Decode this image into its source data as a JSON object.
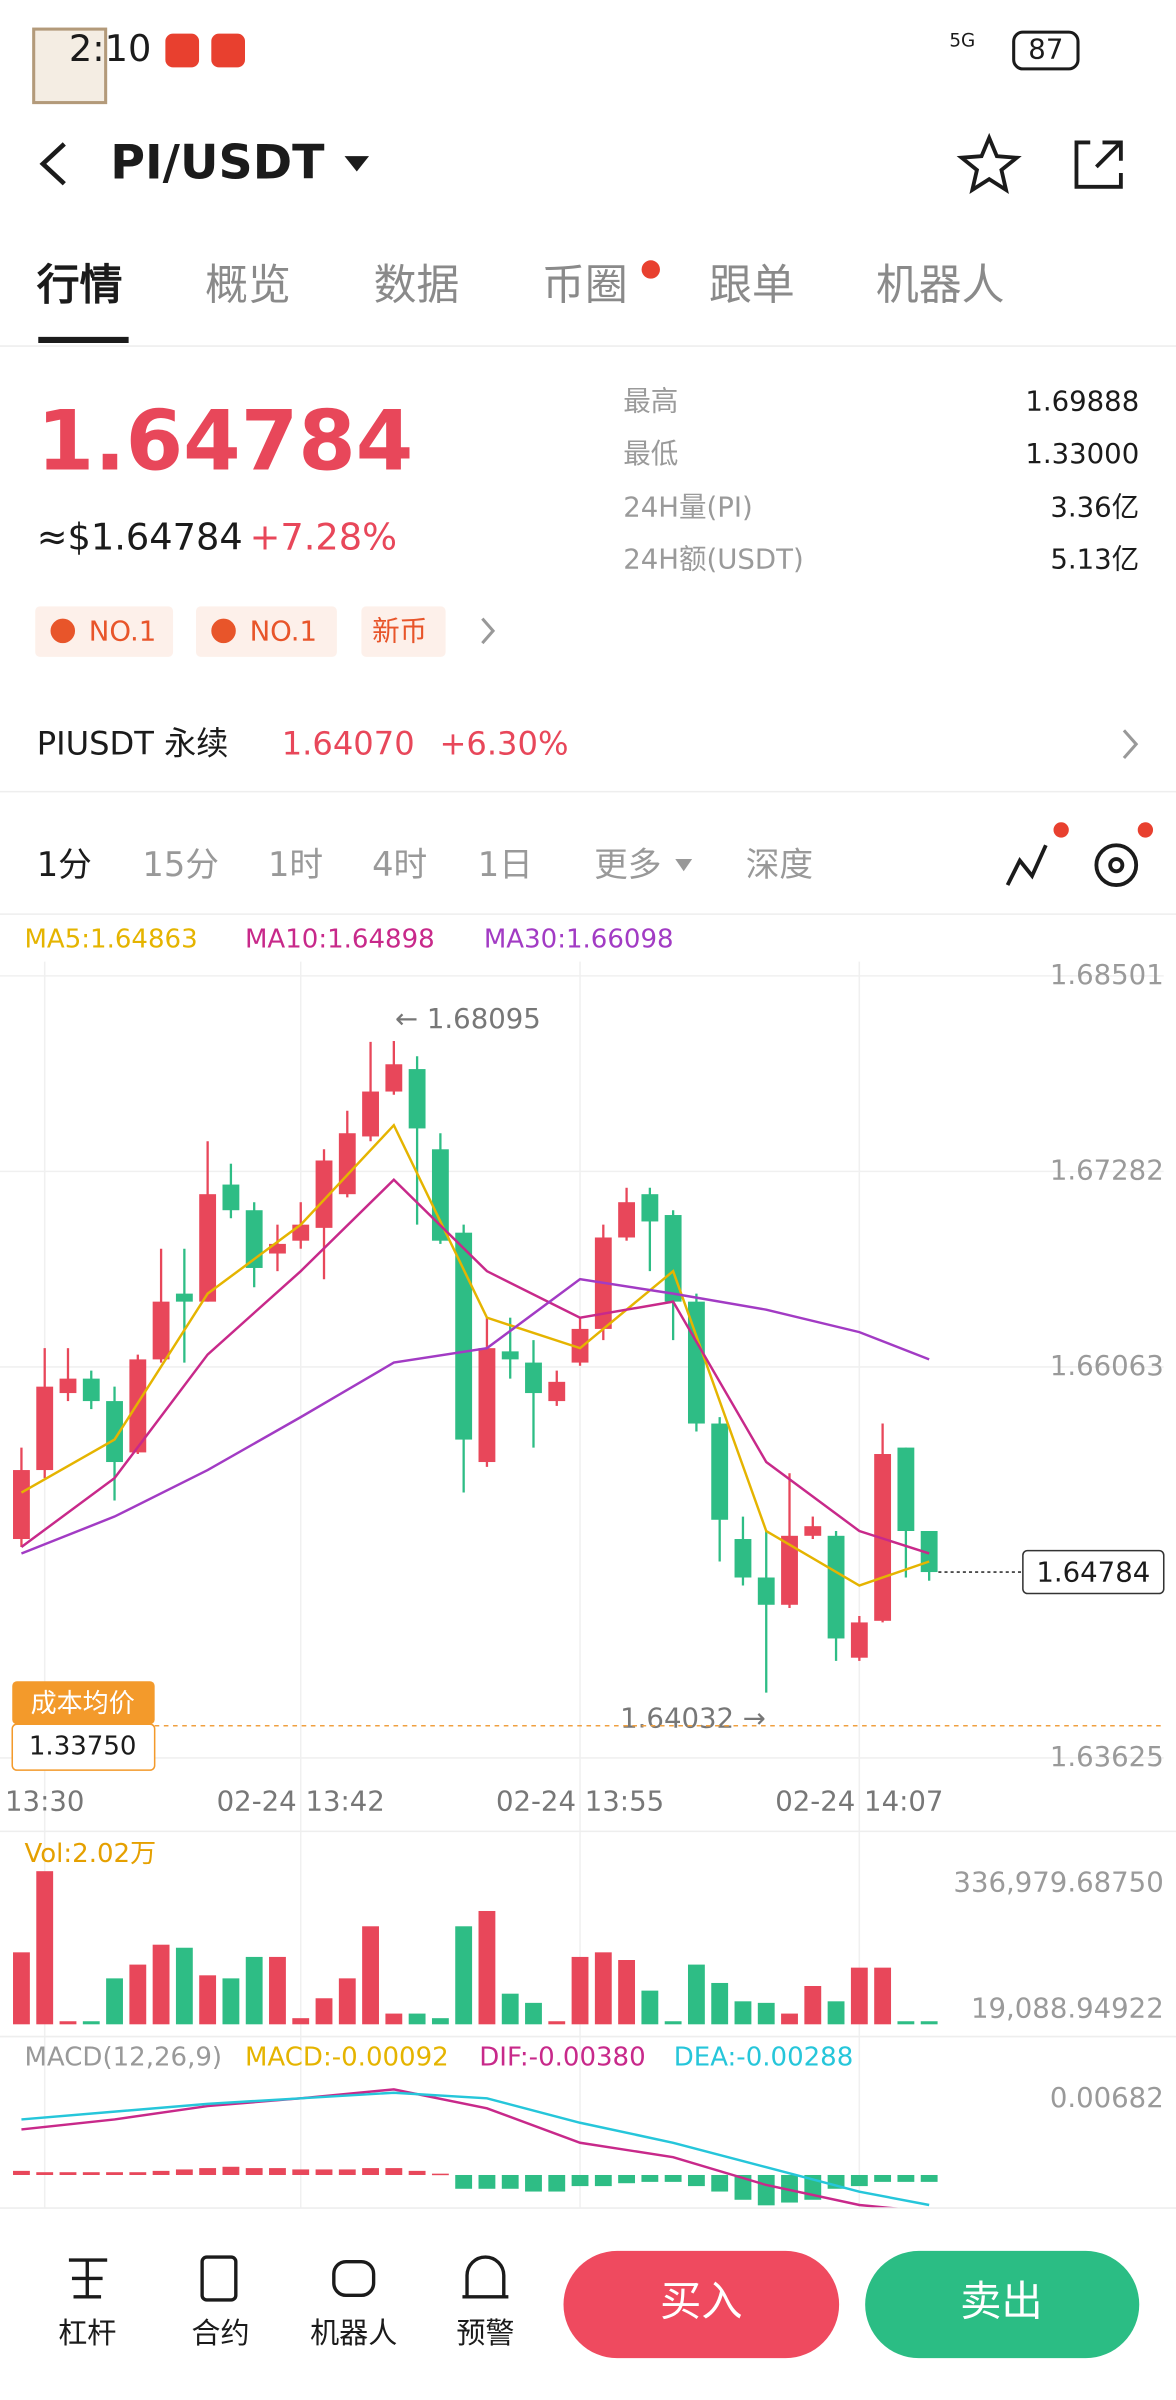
{
  "status_bar": {
    "time": "2:10",
    "network": "5G",
    "battery": "87"
  },
  "header": {
    "title": "PI/USDT"
  },
  "tabs": [
    "行情",
    "概览",
    "数据",
    "币圈",
    "跟单",
    "机器人"
  ],
  "price": {
    "last": "1.64784",
    "usd": "≈$1.64784",
    "change": "+7.28%",
    "badges": [
      "NO.1",
      "NO.1",
      "新币"
    ]
  },
  "stats": [
    [
      "最高",
      "1.69888"
    ],
    [
      "最低",
      "1.33000"
    ],
    [
      "24H量(PI)",
      "3.36亿"
    ],
    [
      "24H额(USDT)",
      "5.13亿"
    ]
  ],
  "perpetual": {
    "name": "PIUSDT 永续",
    "price": "1.64070",
    "change": "+6.30%"
  },
  "intervals": [
    "1分",
    "15分",
    "1时",
    "4时",
    "1日",
    "更多",
    "深度"
  ],
  "chart_data": {
    "type": "candlestick",
    "up_color": "#e8475a",
    "down_color": "#2ebd85",
    "ylim": [
      1.6353,
      1.6859
    ],
    "yticks": [
      1.68501,
      1.67282,
      1.66063,
      1.63625
    ],
    "grid": true,
    "candles": [
      [
        1.6499,
        1.6556,
        1.6494,
        1.6542
      ],
      [
        1.6542,
        1.6618,
        1.6537,
        1.6594
      ],
      [
        1.659,
        1.6618,
        1.6585,
        1.6599
      ],
      [
        1.6599,
        1.6604,
        1.658,
        1.6585
      ],
      [
        1.6585,
        1.6594,
        1.6523,
        1.6547
      ],
      [
        1.6553,
        1.6614,
        1.6552,
        1.6611
      ],
      [
        1.6611,
        1.668,
        1.6609,
        1.6647
      ],
      [
        1.6652,
        1.668,
        1.6609,
        1.6647
      ],
      [
        1.6647,
        1.6747,
        1.6647,
        1.6714
      ],
      [
        1.672,
        1.6733,
        1.6699,
        1.6704
      ],
      [
        1.6704,
        1.6709,
        1.6656,
        1.6668
      ],
      [
        1.6677,
        1.6695,
        1.6666,
        1.6683
      ],
      [
        1.6685,
        1.6709,
        1.668,
        1.6695
      ],
      [
        1.6693,
        1.6742,
        1.6661,
        1.6735
      ],
      [
        1.6714,
        1.6766,
        1.6712,
        1.6752
      ],
      [
        1.675,
        1.6809,
        1.6747,
        1.6778
      ],
      [
        1.6778,
        1.68095,
        1.6776,
        1.6795
      ],
      [
        1.6792,
        1.68,
        1.6695,
        1.6755
      ],
      [
        1.6742,
        1.6752,
        1.6683,
        1.6685
      ],
      [
        1.669,
        1.6695,
        1.6528,
        1.6561
      ],
      [
        1.6547,
        1.6637,
        1.6544,
        1.6618
      ],
      [
        1.6616,
        1.6637,
        1.6599,
        1.6611
      ],
      [
        1.6609,
        1.6623,
        1.6556,
        1.659
      ],
      [
        1.6585,
        1.6604,
        1.6582,
        1.6597
      ],
      [
        1.6609,
        1.6637,
        1.6607,
        1.663
      ],
      [
        1.663,
        1.6695,
        1.6623,
        1.6687
      ],
      [
        1.6687,
        1.6718,
        1.6685,
        1.6709
      ],
      [
        1.6714,
        1.6718,
        1.6666,
        1.6697
      ],
      [
        1.6701,
        1.6704,
        1.6623,
        1.6647
      ],
      [
        1.6647,
        1.6652,
        1.6566,
        1.6571
      ],
      [
        1.6571,
        1.6575,
        1.6485,
        1.6511
      ],
      [
        1.6499,
        1.6513,
        1.647,
        1.6475
      ],
      [
        1.6475,
        1.6504,
        1.64032,
        1.6458
      ],
      [
        1.6458,
        1.654,
        1.6456,
        1.6501
      ],
      [
        1.6501,
        1.6513,
        1.6499,
        1.6507
      ],
      [
        1.6501,
        1.6504,
        1.6423,
        1.6437
      ],
      [
        1.6425,
        1.6451,
        1.6423,
        1.6447
      ],
      [
        1.6448,
        1.6571,
        1.6447,
        1.6552
      ],
      [
        1.6556,
        1.6556,
        1.6475,
        1.6504
      ],
      [
        1.6504,
        1.6504,
        1.6473,
        1.64784
      ]
    ],
    "time_labels": [
      null,
      "13:30",
      null,
      null,
      null,
      null,
      null,
      null,
      null,
      null,
      null,
      null,
      "02-24 13:42",
      null,
      null,
      null,
      null,
      null,
      null,
      null,
      null,
      null,
      null,
      null,
      "02-24 13:55",
      null,
      null,
      null,
      null,
      null,
      null,
      null,
      null,
      null,
      null,
      null,
      "02-24 14:07",
      null,
      null,
      null
    ],
    "ma": [
      {
        "name": "MA5:1.64863",
        "color": "#e5b400",
        "x": [
          0,
          4,
          8,
          12,
          16,
          20,
          24,
          28,
          32,
          36,
          39
        ],
        "values": [
          1.6528,
          1.6561,
          1.6652,
          1.6695,
          1.6757,
          1.6637,
          1.6618,
          1.6666,
          1.6504,
          1.647,
          1.6485
        ]
      },
      {
        "name": "MA10:1.64898",
        "color": "#c8298a",
        "x": [
          0,
          4,
          8,
          12,
          16,
          20,
          24,
          28,
          32,
          36,
          39
        ],
        "values": [
          1.6494,
          1.6537,
          1.6614,
          1.6666,
          1.6723,
          1.6666,
          1.6637,
          1.6647,
          1.6547,
          1.6504,
          1.649
        ]
      },
      {
        "name": "MA30:1.66098",
        "color": "#a23bc4",
        "x": [
          0,
          4,
          8,
          12,
          16,
          20,
          24,
          28,
          32,
          36,
          39
        ],
        "values": [
          1.649,
          1.6513,
          1.6542,
          1.6575,
          1.6609,
          1.6618,
          1.6661,
          1.6652,
          1.6642,
          1.6628,
          1.6611
        ]
      }
    ],
    "high_label": "← 1.68095",
    "low_label": "1.64032 →",
    "last_price": "1.64784",
    "cost_label": "成本均价",
    "cost_value": "1.33750",
    "volume": {
      "legend": "Vol:2.02万",
      "ylim": [
        0,
        336979.6875
      ],
      "yticks": [
        {
          "value": 336979.6875,
          "label": "336,979.68750"
        },
        {
          "value": 19088.94922,
          "label": "19,088.94922"
        }
      ],
      "values": [
        158400,
        336980,
        6740,
        6740,
        101100,
        131400,
        175200,
        168500,
        107800,
        101100,
        148300,
        148300,
        13500,
        57300,
        101100,
        215700,
        23600,
        23600,
        13500,
        215700,
        249400,
        67400,
        47200,
        6740,
        148300,
        158400,
        141500,
        74100,
        6740,
        131400,
        91000,
        50600,
        47200,
        23600,
        84300,
        50600,
        124700,
        124700,
        6740,
        6740
      ]
    },
    "macd": {
      "legend": "MACD(12,26,9)",
      "macd_label": "MACD:-0.00092",
      "dif_label": "DIF:-0.00380",
      "dea_label": "DEA:-0.00288",
      "ylim": [
        -0.0027,
        0.0097
      ],
      "yticks": [
        0.00682
      ],
      "histogram": [
        0.00037,
        0.00025,
        0.00025,
        0.00025,
        0.00025,
        0.00025,
        0.00037,
        0.0005,
        0.00062,
        0.00074,
        0.00062,
        0.00062,
        0.0005,
        0.0005,
        0.0005,
        0.00062,
        0.00062,
        0.00037,
        0.00012,
        -0.00124,
        -0.00124,
        -0.00124,
        -0.00149,
        -0.00149,
        -0.001,
        -0.001,
        -0.00074,
        -0.00062,
        -0.00062,
        -0.001,
        -0.00149,
        -0.00223,
        -0.00273,
        -0.00248,
        -0.00223,
        -0.00124,
        -0.001,
        -0.00062,
        -0.00062,
        -0.00062
      ],
      "lines": [
        {
          "color": "#c8298a",
          "x": [
            0,
            4,
            8,
            12,
            16,
            20,
            24,
            28,
            32,
            36,
            39
          ],
          "values": [
            0.0041,
            0.005,
            0.0062,
            0.0069,
            0.0077,
            0.006,
            0.0029,
            0.0016,
            -0.0009,
            -0.0027,
            -0.0033
          ]
        },
        {
          "color": "#26c6da",
          "x": [
            0,
            4,
            8,
            12,
            16,
            20,
            24,
            28,
            32,
            36,
            39
          ],
          "values": [
            0.005,
            0.0057,
            0.0064,
            0.0069,
            0.0074,
            0.0069,
            0.0047,
            0.0029,
            0.0007,
            -0.0015,
            -0.0027
          ]
        }
      ]
    }
  },
  "bottom_nav": {
    "items": [
      "杠杆",
      "合约",
      "机器人",
      "预警"
    ],
    "buy": "买入",
    "sell": "卖出"
  }
}
